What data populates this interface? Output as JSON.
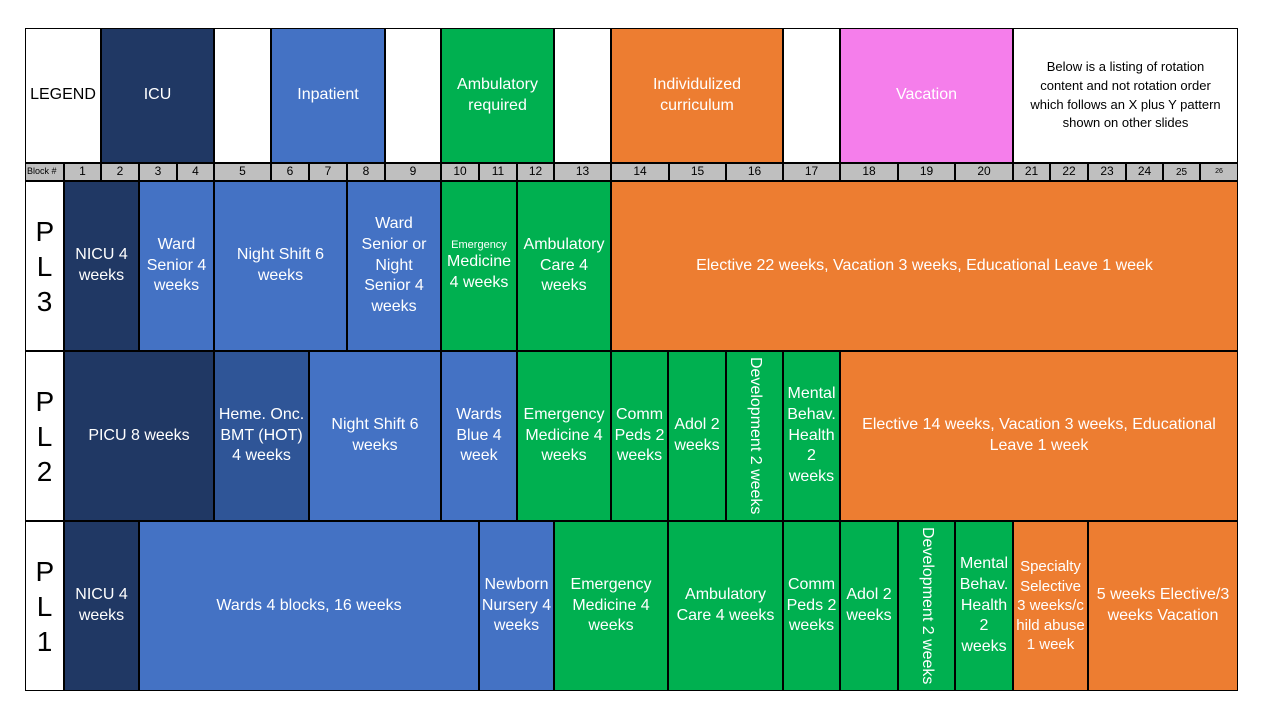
{
  "colors": {
    "icu": "#203864",
    "hot": "#2f5597",
    "inpatient": "#4472c4",
    "ambulatory": "#00b050",
    "individualized": "#ed7d31",
    "vacation": "#f57eeb",
    "block_bar": "#bfbfbf",
    "white": "#ffffff"
  },
  "legend": {
    "title": "LEGEND",
    "items": [
      {
        "label": "ICU",
        "color": "icu"
      },
      {
        "label": "Inpatient",
        "color": "inpatient"
      },
      {
        "label": "Ambulatory required",
        "color": "ambulatory"
      },
      {
        "label": "Individulized curriculum",
        "color": "individualized"
      },
      {
        "label": "Vacation",
        "color": "vacation"
      }
    ],
    "note": "Below is a listing of rotation content and not rotation order which follows an X plus Y pattern shown on other slides"
  },
  "blocks": {
    "label": "Block #",
    "numbers": [
      "1",
      "2",
      "3",
      "4",
      "5",
      "6",
      "7",
      "8",
      "9",
      "10",
      "11",
      "12",
      "13",
      "14",
      "15",
      "16",
      "17",
      "18",
      "19",
      "20",
      "21",
      "22",
      "23",
      "24",
      "25",
      "26"
    ]
  },
  "rows": [
    {
      "label": "PL3",
      "cells": [
        {
          "text": "NICU 4 weeks",
          "color": "icu"
        },
        {
          "text": "Ward Senior 4 weeks",
          "color": "inpatient"
        },
        {
          "text": "Night Shift 6 weeks",
          "color": "inpatient"
        },
        {
          "text": "Ward Senior or Night Senior 4 weeks",
          "color": "inpatient"
        },
        {
          "text_small": "Emergency",
          "text": "Medicine 4 weeks",
          "color": "ambulatory"
        },
        {
          "text": "Ambulatory Care 4 weeks",
          "color": "ambulatory"
        },
        {
          "text": "Elective 22 weeks, Vacation 3 weeks, Educational Leave 1 week",
          "color": "individualized"
        }
      ]
    },
    {
      "label": "PL2",
      "cells": [
        {
          "text": "PICU 8 weeks",
          "color": "icu"
        },
        {
          "text": "Heme. Onc. BMT (HOT) 4 weeks",
          "color": "hot"
        },
        {
          "text": "Night Shift 6 weeks",
          "color": "inpatient"
        },
        {
          "text": "Wards Blue 4 week",
          "color": "inpatient"
        },
        {
          "text": "Emergency Medicine 4 weeks",
          "color": "ambulatory"
        },
        {
          "text": "Comm Peds 2 weeks",
          "color": "ambulatory"
        },
        {
          "text": "Adol 2 weeks",
          "color": "ambulatory"
        },
        {
          "text": "Development 2 weeks",
          "color": "ambulatory",
          "vertical": true
        },
        {
          "text": "Mental Behav. Health 2 weeks",
          "color": "ambulatory"
        },
        {
          "text": "Elective 14 weeks, Vacation 3 weeks, Educational Leave 1 week",
          "color": "individualized"
        }
      ]
    },
    {
      "label": "PL1",
      "cells": [
        {
          "text": "NICU 4 weeks",
          "color": "icu"
        },
        {
          "text": "Wards 4 blocks, 16 weeks",
          "color": "inpatient"
        },
        {
          "text": "Newborn Nursery 4 weeks",
          "color": "inpatient"
        },
        {
          "text": "Emergency Medicine 4 weeks",
          "color": "ambulatory"
        },
        {
          "text": "Ambulatory Care 4 weeks",
          "color": "ambulatory"
        },
        {
          "text": "Comm Peds 2 weeks",
          "color": "ambulatory"
        },
        {
          "text": "Adol 2 weeks",
          "color": "ambulatory"
        },
        {
          "text": "Development 2 weeks",
          "color": "ambulatory",
          "vertical": true
        },
        {
          "text": "Mental Behav. Health 2 weeks",
          "color": "ambulatory"
        },
        {
          "text": "Specialty Selective 3 weeks/child abuse 1 week",
          "color": "individualized"
        },
        {
          "text": "5 weeks Elective/3 weeks Vacation",
          "color": "individualized"
        }
      ]
    }
  ]
}
